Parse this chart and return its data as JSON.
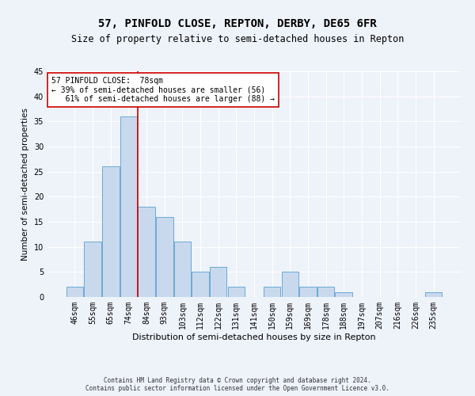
{
  "title": "57, PINFOLD CLOSE, REPTON, DERBY, DE65 6FR",
  "subtitle": "Size of property relative to semi-detached houses in Repton",
  "xlabel": "Distribution of semi-detached houses by size in Repton",
  "ylabel": "Number of semi-detached properties",
  "categories": [
    "46sqm",
    "55sqm",
    "65sqm",
    "74sqm",
    "84sqm",
    "93sqm",
    "103sqm",
    "112sqm",
    "122sqm",
    "131sqm",
    "141sqm",
    "150sqm",
    "159sqm",
    "169sqm",
    "178sqm",
    "188sqm",
    "197sqm",
    "207sqm",
    "216sqm",
    "226sqm",
    "235sqm"
  ],
  "values": [
    2,
    11,
    26,
    36,
    18,
    16,
    11,
    5,
    6,
    2,
    0,
    2,
    5,
    2,
    2,
    1,
    0,
    0,
    0,
    0,
    1
  ],
  "bar_color": "#c8d9ee",
  "bar_edge_color": "#6aaad4",
  "vline_x": 3.5,
  "vline_color": "#cc0000",
  "annotation_text": "57 PINFOLD CLOSE:  78sqm\n← 39% of semi-detached houses are smaller (56)\n   61% of semi-detached houses are larger (88) →",
  "annotation_box_color": "white",
  "annotation_box_edge_color": "#cc0000",
  "ylim": [
    0,
    45
  ],
  "yticks": [
    0,
    5,
    10,
    15,
    20,
    25,
    30,
    35,
    40,
    45
  ],
  "footnote": "Contains HM Land Registry data © Crown copyright and database right 2024.\nContains public sector information licensed under the Open Government Licence v3.0.",
  "background_color": "#eef2f9",
  "grid_color": "white",
  "title_fontsize": 10,
  "subtitle_fontsize": 8.5,
  "tick_fontsize": 7,
  "ylabel_fontsize": 7.5,
  "xlabel_fontsize": 8,
  "annotation_fontsize": 7,
  "footnote_fontsize": 5.5
}
